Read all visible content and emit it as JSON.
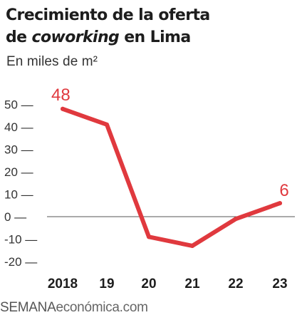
{
  "header": {
    "title_line1": "Crecimiento de la oferta",
    "title_line2_prefix": "de ",
    "title_line2_italic": "coworking",
    "title_line2_suffix": " en Lima",
    "subtitle": "En miles de m²"
  },
  "footer": {
    "brand": "SEMANA",
    "brand_sub": "económica.com"
  },
  "colors": {
    "line": "#e0393e",
    "label": "#e0393e",
    "axis_text": "#333333",
    "zero_line": "#555555"
  },
  "chart_data": {
    "type": "line",
    "title": "Crecimiento de la oferta de coworking en Lima",
    "subtitle": "En miles de m²",
    "categories": [
      "2018",
      "19",
      "20",
      "21",
      "22",
      "23"
    ],
    "series": [
      {
        "values": [
          48,
          41,
          -9,
          -13,
          -1,
          6
        ]
      }
    ],
    "data_labels": [
      {
        "category": "2018",
        "value": 48,
        "text": "48"
      },
      {
        "category": "23",
        "value": 6,
        "text": "6"
      }
    ],
    "y_ticks": [
      50,
      40,
      30,
      20,
      10,
      0,
      -10,
      -20
    ],
    "y_tick_labels": [
      "50 —",
      "40 —",
      "30 —",
      "20 —",
      "10 —",
      "0 —",
      "-10 —",
      "-20 —"
    ],
    "ylim": [
      -20,
      50
    ],
    "grid": false,
    "zero_line": true
  }
}
